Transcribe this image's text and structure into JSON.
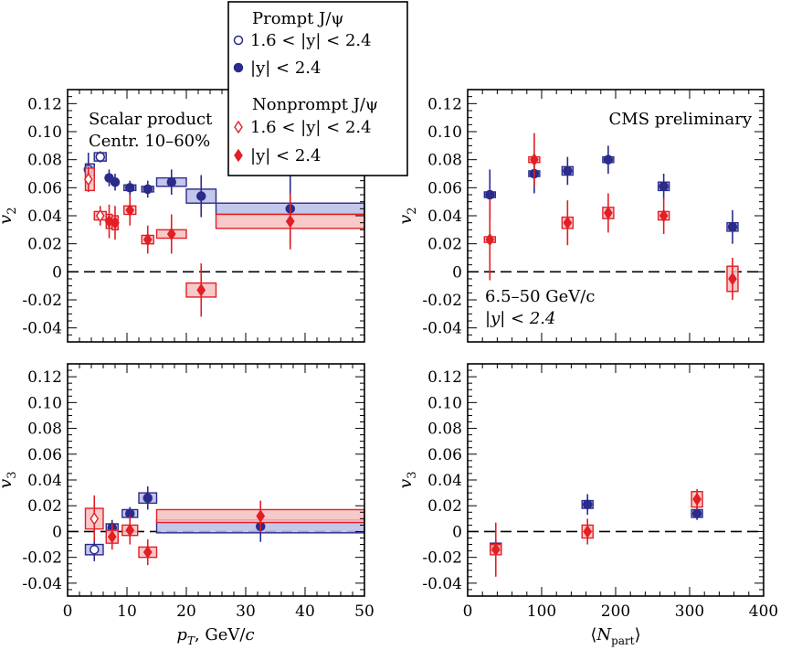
{
  "legend": {
    "prompt_title": "Prompt J/ψ",
    "nonprompt_title": "Nonprompt J/ψ",
    "entries": [
      "1.6 < |y| < 2.4",
      "|y| < 2.4",
      "1.6 < |y| < 2.4",
      "|y| < 2.4"
    ]
  },
  "colors": {
    "prompt": "#2b2b8c",
    "prompt_box_fill": "#b8bde6",
    "nonprompt": "#e31e24",
    "nonprompt_box_fill": "#f6c0c0",
    "dashed_zero": "#000000"
  },
  "x_axes": {
    "left": {
      "label": "p_T, GeV/c",
      "ticks": [
        "0",
        "10",
        "20",
        "30",
        "40",
        "50"
      ],
      "range": [
        0,
        50
      ]
    },
    "right": {
      "label": "⟨N_part⟩",
      "ticks": [
        "0",
        "100",
        "200",
        "300",
        "400"
      ],
      "range": [
        0,
        400
      ]
    }
  },
  "y_axes": {
    "ticks": [
      "0.12",
      "0.10",
      "0.08",
      "0.06",
      "0.04",
      "0.02",
      "0",
      "-0.02",
      "-0.04"
    ],
    "range": [
      -0.05,
      0.13
    ],
    "v2_label": "v2",
    "v3_label": "v3"
  },
  "annotations": {
    "top_left_line1": "Scalar product",
    "top_left_line2": "Centr. 10–60%",
    "top_right": "CMS preliminary",
    "right_kin_line1": "6.5–50 GeV/c",
    "right_kin_line2": "|y| < 2.4"
  },
  "chart_data": [
    {
      "type": "scatter",
      "panel": "top-left",
      "xlabel": "p_T, GeV/c",
      "ylabel": "v2",
      "xlim": [
        0,
        50
      ],
      "ylim": [
        -0.05,
        0.13
      ],
      "series": [
        {
          "name": "Prompt J/ψ 1.6 < |y| < 2.4",
          "marker": "open-circle",
          "points": [
            {
              "x": 3.5,
              "y": 0.073,
              "err": 0.012,
              "xlo": 3,
              "xhi": 4.5,
              "sys": 0.004
            },
            {
              "x": 5.5,
              "y": 0.082,
              "err": 0.004,
              "xlo": 4.5,
              "xhi": 6.5,
              "sys": 0.003
            }
          ]
        },
        {
          "name": "Prompt J/ψ |y| < 2.4",
          "marker": "filled-circle",
          "points": [
            {
              "x": 7.0,
              "y": 0.067,
              "err": 0.006,
              "xlo": 6.5,
              "xhi": 7.5,
              "sys": 0.002
            },
            {
              "x": 8.0,
              "y": 0.064,
              "err": 0.006,
              "xlo": 7.5,
              "xhi": 8.5,
              "sys": 0.002
            },
            {
              "x": 10.5,
              "y": 0.06,
              "err": 0.005,
              "xlo": 9.5,
              "xhi": 11.5,
              "sys": 0.002
            },
            {
              "x": 13.5,
              "y": 0.059,
              "err": 0.006,
              "xlo": 12.5,
              "xhi": 14.5,
              "sys": 0.002
            },
            {
              "x": 17.5,
              "y": 0.064,
              "err": 0.009,
              "xlo": 15,
              "xhi": 20,
              "sys": 0.003
            },
            {
              "x": 22.5,
              "y": 0.054,
              "err": 0.015,
              "xlo": 20,
              "xhi": 25,
              "sys": 0.005
            },
            {
              "x": 37.5,
              "y": 0.045,
              "err": 0.026,
              "xlo": 25,
              "xhi": 50,
              "sys": 0.004
            }
          ]
        },
        {
          "name": "Nonprompt J/ψ 1.6 < |y| < 2.4",
          "marker": "open-diamond",
          "points": [
            {
              "x": 3.5,
              "y": 0.066,
              "err": 0.009,
              "xlo": 3,
              "xhi": 4.5,
              "sys": 0.008
            },
            {
              "x": 5.5,
              "y": 0.04,
              "err": 0.007,
              "xlo": 4.5,
              "xhi": 6.5,
              "sys": 0.003
            }
          ]
        },
        {
          "name": "Nonprompt J/ψ |y| < 2.4",
          "marker": "filled-diamond",
          "points": [
            {
              "x": 7.0,
              "y": 0.036,
              "err": 0.012,
              "xlo": 6.5,
              "xhi": 7.5,
              "sys": 0.005
            },
            {
              "x": 8.0,
              "y": 0.035,
              "err": 0.012,
              "xlo": 7.5,
              "xhi": 8.5,
              "sys": 0.005
            },
            {
              "x": 10.5,
              "y": 0.044,
              "err": 0.011,
              "xlo": 9.5,
              "xhi": 11.5,
              "sys": 0.003
            },
            {
              "x": 13.5,
              "y": 0.023,
              "err": 0.01,
              "xlo": 12.5,
              "xhi": 14.5,
              "sys": 0.003
            },
            {
              "x": 17.5,
              "y": 0.027,
              "err": 0.014,
              "xlo": 15,
              "xhi": 20,
              "sys": 0.003
            },
            {
              "x": 22.5,
              "y": -0.013,
              "err": 0.019,
              "xlo": 20,
              "xhi": 25,
              "sys": 0.005
            },
            {
              "x": 37.5,
              "y": 0.036,
              "err": 0.02,
              "xlo": 25,
              "xhi": 50,
              "sys": 0.005
            }
          ]
        }
      ]
    },
    {
      "type": "scatter",
      "panel": "top-right",
      "xlabel": "⟨N_part⟩",
      "ylabel": "v2",
      "xlim": [
        0,
        400
      ],
      "ylim": [
        -0.05,
        0.13
      ],
      "series": [
        {
          "name": "Prompt J/ψ |y| < 2.4",
          "marker": "filled-circle",
          "points": [
            {
              "x": 30,
              "y": 0.055,
              "err": 0.018,
              "sys": 0.002
            },
            {
              "x": 90,
              "y": 0.07,
              "err": 0.014,
              "sys": 0.002
            },
            {
              "x": 135,
              "y": 0.072,
              "err": 0.01,
              "sys": 0.003
            },
            {
              "x": 190,
              "y": 0.08,
              "err": 0.01,
              "sys": 0.002
            },
            {
              "x": 265,
              "y": 0.061,
              "err": 0.009,
              "sys": 0.003
            },
            {
              "x": 358,
              "y": 0.032,
              "err": 0.012,
              "sys": 0.003
            }
          ]
        },
        {
          "name": "Nonprompt J/ψ |y| < 2.4",
          "marker": "filled-diamond",
          "points": [
            {
              "x": 30,
              "y": 0.023,
              "err": 0.029,
              "sys": 0.002
            },
            {
              "x": 90,
              "y": 0.08,
              "err": 0.019,
              "sys": 0.002
            },
            {
              "x": 135,
              "y": 0.035,
              "err": 0.016,
              "sys": 0.004
            },
            {
              "x": 190,
              "y": 0.042,
              "err": 0.014,
              "sys": 0.004
            },
            {
              "x": 265,
              "y": 0.04,
              "err": 0.013,
              "sys": 0.003
            },
            {
              "x": 358,
              "y": -0.005,
              "err": 0.015,
              "sys": 0.009
            }
          ]
        }
      ]
    },
    {
      "type": "scatter",
      "panel": "bottom-left",
      "xlabel": "p_T, GeV/c",
      "ylabel": "v3",
      "xlim": [
        0,
        50
      ],
      "ylim": [
        -0.05,
        0.13
      ],
      "series": [
        {
          "name": "Prompt J/ψ 1.6 < |y| < 2.4",
          "marker": "open-circle",
          "points": [
            {
              "x": 4.5,
              "y": -0.014,
              "err": 0.009,
              "xlo": 3,
              "xhi": 6,
              "sys": 0.004
            }
          ]
        },
        {
          "name": "Prompt J/ψ |y| < 2.4",
          "marker": "filled-circle",
          "points": [
            {
              "x": 7.5,
              "y": 0.003,
              "err": 0.006,
              "xlo": 6.5,
              "xhi": 8.5,
              "sys": 0.003
            },
            {
              "x": 10.5,
              "y": 0.014,
              "err": 0.005,
              "xlo": 9.2,
              "xhi": 11.8,
              "sys": 0.003
            },
            {
              "x": 13.5,
              "y": 0.026,
              "err": 0.009,
              "xlo": 12,
              "xhi": 15,
              "sys": 0.004
            },
            {
              "x": 32.5,
              "y": 0.004,
              "err": 0.012,
              "xlo": 15,
              "xhi": 50,
              "sys": 0.005
            }
          ]
        },
        {
          "name": "Nonprompt J/ψ 1.6 < |y| < 2.4",
          "marker": "open-diamond",
          "points": [
            {
              "x": 4.5,
              "y": 0.01,
              "err": 0.018,
              "xlo": 3,
              "xhi": 6,
              "sys": 0.008
            }
          ]
        },
        {
          "name": "Nonprompt J/ψ |y| < 2.4",
          "marker": "filled-diamond",
          "points": [
            {
              "x": 7.5,
              "y": -0.004,
              "err": 0.01,
              "xlo": 6.5,
              "xhi": 8.5,
              "sys": 0.005
            },
            {
              "x": 10.5,
              "y": 0.001,
              "err": 0.011,
              "xlo": 9.2,
              "xhi": 11.8,
              "sys": 0.004
            },
            {
              "x": 13.5,
              "y": -0.016,
              "err": 0.01,
              "xlo": 12,
              "xhi": 15,
              "sys": 0.004
            },
            {
              "x": 32.5,
              "y": 0.012,
              "err": 0.012,
              "xlo": 15,
              "xhi": 50,
              "sys": 0.005
            }
          ]
        }
      ]
    },
    {
      "type": "scatter",
      "panel": "bottom-right",
      "xlabel": "⟨N_part⟩",
      "ylabel": "v3",
      "xlim": [
        0,
        400
      ],
      "ylim": [
        -0.05,
        0.13
      ],
      "series": [
        {
          "name": "Prompt J/ψ |y| < 2.4",
          "marker": "filled-circle",
          "points": [
            {
              "x": 38,
              "y": -0.012,
              "err": 0.006,
              "sys": 0.003
            },
            {
              "x": 162,
              "y": 0.021,
              "err": 0.008,
              "sys": 0.003
            },
            {
              "x": 310,
              "y": 0.014,
              "err": 0.005,
              "sys": 0.003
            }
          ]
        },
        {
          "name": "Nonprompt J/ψ |y| < 2.4",
          "marker": "filled-diamond",
          "points": [
            {
              "x": 38,
              "y": -0.014,
              "err": 0.021,
              "sys": 0.004
            },
            {
              "x": 162,
              "y": 0.0,
              "err": 0.01,
              "sys": 0.005
            },
            {
              "x": 310,
              "y": 0.025,
              "err": 0.008,
              "sys": 0.006
            }
          ]
        }
      ]
    }
  ]
}
